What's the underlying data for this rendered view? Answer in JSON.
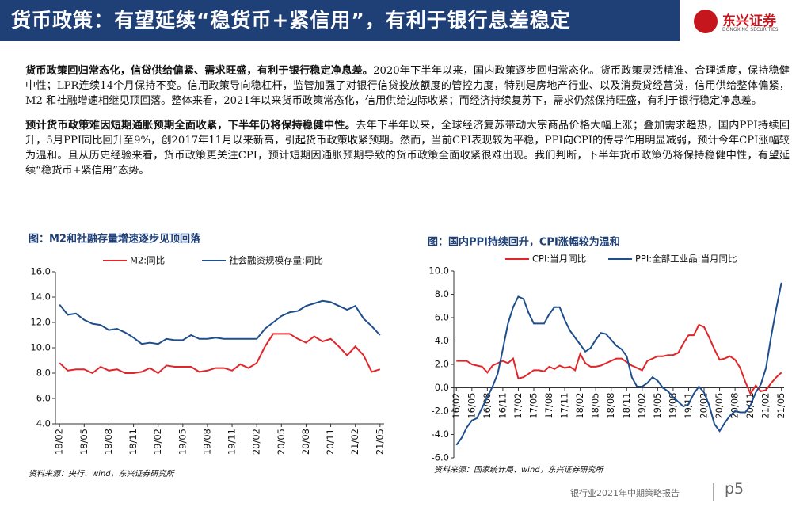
{
  "header": {
    "title": "货币政策：有望延续“稳货币+紧信用”，有利于银行息差稳定",
    "logo_name": "东兴证券",
    "logo_sub": "DONGXING SECURITIES"
  },
  "paragraphs": [
    {
      "bold": "货币政策回归常态化，信贷供给偏紧、需求旺盛，有利于银行稳定净息差。",
      "text": "2020年下半年以来，国内政策逐步回归常态化。货币政策灵活精准、合理适度，保持稳健中性；LPR连续14个月保持不变。信用政策导向稳杠杆，监管加强了对银行信贷投放额度的管控力度，特别是房地产行业、以及消费贷经营贷，信用供给整体偏紧，M2 和社融增速相继见顶回落。整体来看，2021年以来货币政策常态化，信用供给边际收紧；而经济持续复苏下，需求仍然保持旺盛，有利于银行稳定净息差。"
    },
    {
      "bold": "预计货币政策难因短期通胀预期全面收紧，下半年仍将保持稳健中性。",
      "text": "去年下半年以来，全球经济复苏带动大宗商品价格大幅上涨；叠加需求趋热，国内PPI持续回升，5月PPI同比回升至9%，创2017年11月以来新高，引起货币政策收紧预期。然而，当前CPI表现较为平稳，PPI向CPI的传导作用明显减弱，预计今年CPI涨幅较为温和。且从历史经验来看，货币政策更关注CPI，预计短期因通胀预期导致的货币政策全面收紧很难出现。我们判断，下半年货币政策仍将保持稳健中性，有望延续“稳货币+紧信用”态势。"
    }
  ],
  "chart_data": [
    {
      "type": "line",
      "title": "图：M2和社融存量增速逐步见顶回落",
      "source": "资料来源：央行、wind，东兴证券研究所",
      "categories": [
        "18/02",
        null,
        null,
        "18/05",
        null,
        null,
        "18/08",
        null,
        null,
        "18/11",
        null,
        null,
        "19/02",
        null,
        null,
        "19/05",
        null,
        null,
        "19/08",
        null,
        null,
        "19/11",
        null,
        null,
        "20/02",
        null,
        null,
        "20/05",
        null,
        null,
        "20/08",
        null,
        null,
        "20/11",
        null,
        null,
        "21/02",
        null,
        null,
        "21/05"
      ],
      "series": [
        {
          "name": "M2:同比",
          "color": "#e0262a",
          "values": [
            8.8,
            8.2,
            8.3,
            8.3,
            8.0,
            8.5,
            8.2,
            8.3,
            8.0,
            8.0,
            8.1,
            8.4,
            8.0,
            8.6,
            8.5,
            8.5,
            8.5,
            8.1,
            8.2,
            8.4,
            8.4,
            8.2,
            8.7,
            8.4,
            8.8,
            10.1,
            11.1,
            11.1,
            11.1,
            10.7,
            10.4,
            10.9,
            10.5,
            10.7,
            10.1,
            9.4,
            10.1,
            9.4,
            8.1,
            8.3
          ]
        },
        {
          "name": "社会融资规模存量:同比",
          "color": "#1f4e8c",
          "values": [
            13.4,
            12.6,
            12.7,
            12.2,
            11.9,
            11.8,
            11.4,
            11.5,
            11.2,
            10.8,
            10.3,
            10.4,
            10.3,
            10.7,
            10.6,
            10.6,
            11.0,
            10.7,
            10.7,
            10.8,
            10.7,
            10.7,
            10.7,
            10.7,
            10.7,
            11.5,
            12.0,
            12.5,
            12.8,
            12.9,
            13.3,
            13.5,
            13.7,
            13.6,
            13.3,
            13.0,
            13.3,
            12.3,
            11.7,
            11.0
          ]
        }
      ],
      "ylim": [
        4,
        16
      ],
      "yticks": [
        {
          "value": 4,
          "label": "4.0"
        },
        {
          "value": 6,
          "label": "6.0"
        },
        {
          "value": 8,
          "label": "8.0"
        },
        {
          "value": 10,
          "label": "10.0"
        },
        {
          "value": 12,
          "label": "12.0"
        },
        {
          "value": 14,
          "label": "14.0"
        },
        {
          "value": 16,
          "label": "16.0"
        }
      ],
      "grid": false
    },
    {
      "type": "line",
      "title": "图：国内PPI持续回升，CPI涨幅较为温和",
      "source": "资料来源：国家统计局、wind，东兴证券研究所",
      "categories": [
        "16/02",
        null,
        null,
        "16/05",
        null,
        null,
        "16/08",
        null,
        null,
        "16/11",
        null,
        null,
        "17/02",
        null,
        null,
        "17/05",
        null,
        null,
        "17/08",
        null,
        null,
        "17/11",
        null,
        null,
        "18/02",
        null,
        null,
        "18/05",
        null,
        null,
        "18/08",
        null,
        null,
        "18/11",
        null,
        null,
        "19/02",
        null,
        null,
        "19/05",
        null,
        null,
        "19/08",
        null,
        null,
        "19/11",
        null,
        null,
        "20/02",
        null,
        null,
        "20/05",
        null,
        null,
        "20/08",
        null,
        null,
        "20/11",
        null,
        null,
        "21/02",
        null,
        null,
        "21/05"
      ],
      "series": [
        {
          "name": "CPI:当月同比",
          "color": "#e0262a",
          "values": [
            2.3,
            2.3,
            2.3,
            2.0,
            1.9,
            1.8,
            1.3,
            1.9,
            2.1,
            2.3,
            2.1,
            2.5,
            0.8,
            0.9,
            1.2,
            1.5,
            1.5,
            1.4,
            1.8,
            1.6,
            1.9,
            1.7,
            1.8,
            1.5,
            2.9,
            2.1,
            1.8,
            1.8,
            1.9,
            2.1,
            2.3,
            2.5,
            2.5,
            2.2,
            1.9,
            1.7,
            1.5,
            2.3,
            2.5,
            2.7,
            2.7,
            2.8,
            2.8,
            3.0,
            3.8,
            4.5,
            4.5,
            5.4,
            5.2,
            4.3,
            3.3,
            2.4,
            2.5,
            2.7,
            2.4,
            1.7,
            0.5,
            -0.5,
            0.2,
            -0.3,
            -0.2,
            0.4,
            0.9,
            1.3
          ]
        },
        {
          "name": "PPI:全部工业品:当月同比",
          "color": "#1f4e8c",
          "values": [
            -4.9,
            -4.3,
            -3.4,
            -2.8,
            -2.6,
            -1.7,
            -0.8,
            0.1,
            1.2,
            3.3,
            5.5,
            6.9,
            7.8,
            7.6,
            6.4,
            5.5,
            5.5,
            5.5,
            6.3,
            6.9,
            6.9,
            5.8,
            4.9,
            4.3,
            3.7,
            3.1,
            3.4,
            4.1,
            4.7,
            4.6,
            4.1,
            3.6,
            3.3,
            2.7,
            0.9,
            0.1,
            0.1,
            0.4,
            0.9,
            0.6,
            0.0,
            -0.3,
            -0.8,
            -1.2,
            -1.6,
            -1.4,
            -0.5,
            0.1,
            -0.4,
            -1.5,
            -3.1,
            -3.7,
            -3.0,
            -2.4,
            -2.0,
            -2.1,
            -2.1,
            -1.5,
            -0.4,
            0.3,
            1.7,
            4.4,
            6.8,
            9.0
          ]
        }
      ],
      "ylim": [
        -6,
        10
      ],
      "yticks": [
        {
          "value": -6,
          "label": "-6.0"
        },
        {
          "value": -4,
          "label": "-4.0"
        },
        {
          "value": -2,
          "label": "-2.0"
        },
        {
          "value": 0,
          "label": "0.0"
        },
        {
          "value": 2,
          "label": "2.0"
        },
        {
          "value": 4,
          "label": "4.0"
        },
        {
          "value": 6,
          "label": "6.0"
        },
        {
          "value": 8,
          "label": "8.0"
        },
        {
          "value": 10,
          "label": "10.0"
        }
      ],
      "grid": false
    }
  ],
  "footer": {
    "report": "银行业2021年中期策略报告",
    "page": "p5"
  }
}
